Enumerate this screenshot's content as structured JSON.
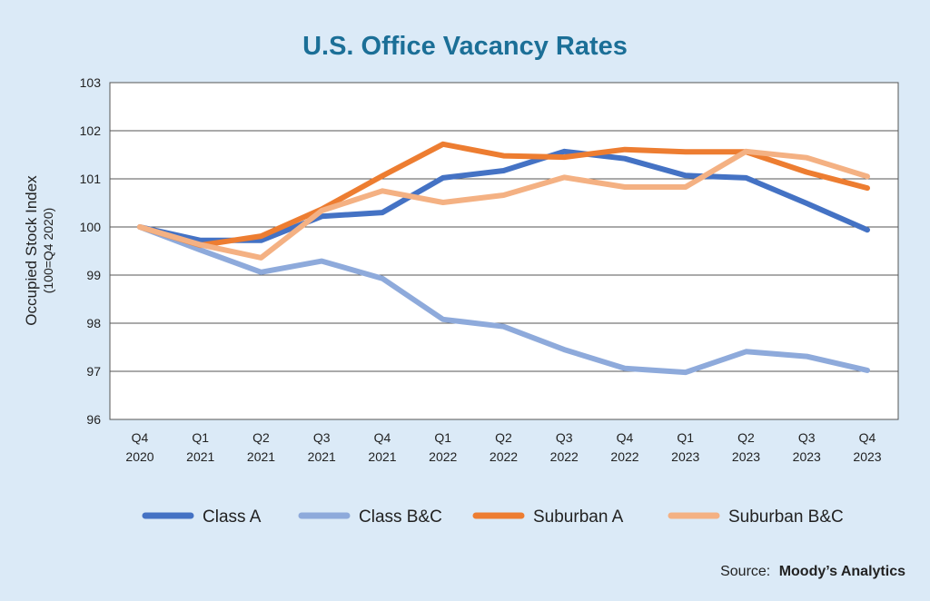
{
  "chart_data": {
    "type": "line",
    "title": "U.S. Office Vacancy Rates",
    "ylabel": "Occupied Stock Index",
    "ylabel_sub": "(100=Q4 2020)",
    "xlabel": "",
    "categories": [
      [
        "Q4",
        "2020"
      ],
      [
        "Q1",
        "2021"
      ],
      [
        "Q2",
        "2021"
      ],
      [
        "Q3",
        "2021"
      ],
      [
        "Q4",
        "2021"
      ],
      [
        "Q1",
        "2022"
      ],
      [
        "Q2",
        "2022"
      ],
      [
        "Q3",
        "2022"
      ],
      [
        "Q4",
        "2022"
      ],
      [
        "Q1",
        "2023"
      ],
      [
        "Q2",
        "2023"
      ],
      [
        "Q3",
        "2023"
      ],
      [
        "Q4",
        "2023"
      ]
    ],
    "ylim": [
      96,
      103
    ],
    "yticks": [
      "96",
      "97",
      "98",
      "99",
      "100",
      "101",
      "102",
      "103"
    ],
    "grid": true,
    "legend_position": "bottom",
    "series": [
      {
        "name": "Class A",
        "color": "#4472c4",
        "values": [
          100.0,
          99.72,
          99.72,
          100.22,
          100.3,
          101.02,
          101.17,
          101.57,
          101.42,
          101.07,
          101.02,
          100.49,
          99.94
        ]
      },
      {
        "name": "Class B&C",
        "color": "#8eaadb",
        "values": [
          100.0,
          99.52,
          99.06,
          99.29,
          98.93,
          98.08,
          97.93,
          97.45,
          97.06,
          96.98,
          97.41,
          97.31,
          97.02
        ]
      },
      {
        "name": "Suburban A",
        "color": "#ed7d31",
        "values": [
          100.0,
          99.62,
          99.81,
          100.37,
          101.06,
          101.72,
          101.48,
          101.45,
          101.61,
          101.56,
          101.56,
          101.14,
          100.81
        ]
      },
      {
        "name": "Suburban B&C",
        "color": "#f4b183",
        "values": [
          100.0,
          99.63,
          99.36,
          100.34,
          100.75,
          100.51,
          100.66,
          101.03,
          100.83,
          100.83,
          101.57,
          101.44,
          101.05
        ]
      }
    ]
  },
  "source": {
    "label": "Source:",
    "name": "Moody’s Analytics"
  },
  "colors": {
    "title": "#1b6f97",
    "background": "#dbeaf7",
    "plot_background": "#ffffff",
    "grid": "#555555"
  }
}
